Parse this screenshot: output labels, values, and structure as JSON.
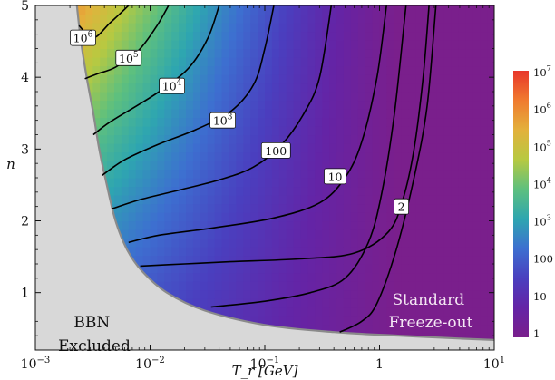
{
  "chart_data": {
    "type": "heatmap",
    "title": "",
    "xlabel": "T_r [GeV]",
    "ylabel": "n",
    "x_scale": "log",
    "xlim": [
      0.001,
      10
    ],
    "ylim": [
      0.2,
      5
    ],
    "x_ticks": [
      {
        "value": 0.001,
        "base": "10",
        "exp": "−3"
      },
      {
        "value": 0.01,
        "base": "10",
        "exp": "−2"
      },
      {
        "value": 0.1,
        "base": "10",
        "exp": "−1"
      },
      {
        "value": 1,
        "base": "1",
        "exp": ""
      },
      {
        "value": 10,
        "base": "10",
        "exp": "1"
      }
    ],
    "y_ticks": [
      1,
      2,
      3,
      4,
      5
    ],
    "excluded_boundary": [
      [
        0.0023,
        5.0
      ],
      [
        0.0025,
        4.5
      ],
      [
        0.0028,
        4.0
      ],
      [
        0.0032,
        3.5
      ],
      [
        0.0036,
        3.0
      ],
      [
        0.0042,
        2.5
      ],
      [
        0.005,
        2.0
      ],
      [
        0.0063,
        1.6
      ],
      [
        0.0085,
        1.3
      ],
      [
        0.014,
        1.0
      ],
      [
        0.03,
        0.75
      ],
      [
        0.1,
        0.55
      ],
      [
        0.4,
        0.45
      ],
      [
        1.5,
        0.4
      ],
      [
        5,
        0.36
      ],
      [
        10,
        0.34
      ]
    ],
    "contours": [
      {
        "label_base": "10",
        "label_exp": "6",
        "label_at": [
          0.0026,
          4.55
        ],
        "points": [
          [
            0.0024,
            4.72
          ],
          [
            0.0032,
            4.55
          ],
          [
            0.0045,
            4.76
          ],
          [
            0.0065,
            5.0
          ]
        ]
      },
      {
        "label_base": "10",
        "label_exp": "5",
        "label_at": [
          0.0065,
          4.27
        ],
        "points": [
          [
            0.0027,
            3.98
          ],
          [
            0.0035,
            4.05
          ],
          [
            0.005,
            4.14
          ],
          [
            0.008,
            4.38
          ],
          [
            0.0115,
            4.72
          ],
          [
            0.0145,
            5.0
          ]
        ]
      },
      {
        "label_base": "10",
        "label_exp": "4",
        "label_at": [
          0.0155,
          3.88
        ],
        "points": [
          [
            0.0032,
            3.2
          ],
          [
            0.0045,
            3.38
          ],
          [
            0.008,
            3.62
          ],
          [
            0.013,
            3.84
          ],
          [
            0.022,
            4.14
          ],
          [
            0.032,
            4.55
          ],
          [
            0.04,
            5.0
          ]
        ]
      },
      {
        "label_base": "10",
        "label_exp": "3",
        "label_at": [
          0.043,
          3.4
        ],
        "points": [
          [
            0.0038,
            2.63
          ],
          [
            0.006,
            2.85
          ],
          [
            0.012,
            3.07
          ],
          [
            0.025,
            3.27
          ],
          [
            0.05,
            3.52
          ],
          [
            0.08,
            3.9
          ],
          [
            0.1,
            4.4
          ],
          [
            0.12,
            5.0
          ]
        ]
      },
      {
        "label_base": "100",
        "label_exp": "",
        "label_at": [
          0.125,
          2.98
        ],
        "points": [
          [
            0.0047,
            2.17
          ],
          [
            0.008,
            2.29
          ],
          [
            0.018,
            2.43
          ],
          [
            0.04,
            2.57
          ],
          [
            0.08,
            2.75
          ],
          [
            0.14,
            3.06
          ],
          [
            0.22,
            3.5
          ],
          [
            0.3,
            4.0
          ],
          [
            0.38,
            5.0
          ]
        ]
      },
      {
        "label_base": "10",
        "label_exp": "",
        "label_at": [
          0.41,
          2.62
        ],
        "points": [
          [
            0.0065,
            1.7
          ],
          [
            0.012,
            1.8
          ],
          [
            0.035,
            1.9
          ],
          [
            0.12,
            2.04
          ],
          [
            0.3,
            2.25
          ],
          [
            0.5,
            2.6
          ],
          [
            0.7,
            3.1
          ],
          [
            0.95,
            4.0
          ],
          [
            1.15,
            5.0
          ]
        ]
      },
      {
        "label_base": "2",
        "label_exp": "",
        "label_at": [
          1.55,
          2.2
        ],
        "points": [
          [
            0.0082,
            1.37
          ],
          [
            0.02,
            1.4
          ],
          [
            0.05,
            1.43
          ],
          [
            0.2,
            1.47
          ],
          [
            0.6,
            1.55
          ],
          [
            1.2,
            1.85
          ],
          [
            1.6,
            2.3
          ],
          [
            2.0,
            3.0
          ],
          [
            2.4,
            4.0
          ],
          [
            2.7,
            5.0
          ]
        ]
      },
      {
        "label_base": "",
        "label_exp": "",
        "label_at": null,
        "points": [
          [
            0.034,
            0.8
          ],
          [
            0.1,
            0.88
          ],
          [
            0.25,
            1.0
          ],
          [
            0.5,
            1.2
          ],
          [
            0.8,
            1.7
          ],
          [
            1.05,
            2.4
          ],
          [
            1.35,
            3.5
          ],
          [
            1.7,
            5.0
          ]
        ]
      },
      {
        "label_base": "",
        "label_exp": "",
        "label_at": null,
        "points": [
          [
            0.45,
            0.45
          ],
          [
            0.7,
            0.6
          ],
          [
            0.95,
            0.85
          ],
          [
            1.4,
            1.6
          ],
          [
            2.0,
            2.6
          ],
          [
            2.6,
            3.6
          ],
          [
            3.1,
            5.0
          ]
        ]
      }
    ],
    "region_labels": {
      "excluded": [
        "BBN",
        "Excluded"
      ],
      "standard": [
        "Standard",
        "Freeze-out"
      ]
    },
    "colorbar": {
      "labels": [
        {
          "base": "10",
          "exp": "7"
        },
        {
          "base": "10",
          "exp": "6"
        },
        {
          "base": "10",
          "exp": "5"
        },
        {
          "base": "10",
          "exp": "4"
        },
        {
          "base": "10",
          "exp": "3"
        },
        {
          "base": "100",
          "exp": ""
        },
        {
          "base": "10",
          "exp": ""
        },
        {
          "base": "1",
          "exp": ""
        }
      ],
      "colors": [
        "#e8372b",
        "#f07a2f",
        "#e3b13c",
        "#b7c941",
        "#5ec07e",
        "#2ea6b0",
        "#3d6fd0",
        "#4a3fbf",
        "#6424a6",
        "#7a1f8c"
      ]
    },
    "colors": {
      "excluded_fill": "#d8d8d8",
      "boundary_line": "#8a8a8a",
      "contour_line": "#000000"
    }
  }
}
